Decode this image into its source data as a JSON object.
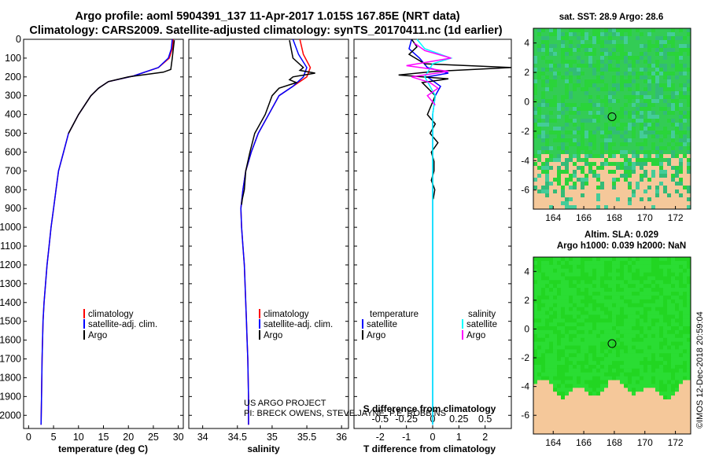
{
  "header": {
    "line1": "Argo profile: aoml 5904391_137 11-Apr-2017 1.015S 167.85E (NRT data)",
    "line2": "Climatology: CARS2009. Satellite-adjusted climatology: synTS_20170411.nc (1d earlier)"
  },
  "watermark": "US ARGO PROJECT\nPI: BRECK OWENS, STEVE JAYNE, P.E. ROBBINS",
  "timestamp": "©IMOS 12-Dec-2018 20:59:04",
  "colors": {
    "climatology": "#ff0000",
    "satellite": "#0000ff",
    "argo": "#000000",
    "sal_satellite": "#00ffff",
    "sal_argo": "#ff00ff",
    "land": "#f5c89a",
    "ocean": "#22dd22"
  },
  "chart_data": [
    {
      "type": "line",
      "id": "temperature",
      "xlabel": "temperature (deg C)",
      "xlim": [
        -1,
        31
      ],
      "ylim": [
        2070,
        0
      ],
      "xticks": [
        0,
        5,
        10,
        15,
        20,
        25,
        30
      ],
      "yticks": [
        0,
        100,
        200,
        300,
        400,
        500,
        600,
        700,
        800,
        900,
        1000,
        1100,
        1200,
        1300,
        1400,
        1500,
        1600,
        1700,
        1800,
        1900,
        2000
      ],
      "legend": [
        "climatology",
        "satellite-adj. clim.",
        "Argo"
      ],
      "series": [
        {
          "name": "climatology",
          "x": [
            29.0,
            28.8,
            28.2,
            26,
            21,
            16,
            14,
            12.5,
            10,
            8,
            7,
            6,
            5.5,
            5,
            4.5,
            4.1,
            3.7,
            3.4,
            3.1,
            2.9,
            2.7,
            2.6,
            2.5
          ],
          "y": [
            0,
            50,
            100,
            150,
            195,
            225,
            260,
            300,
            400,
            500,
            600,
            700,
            800,
            900,
            1000,
            1100,
            1200,
            1300,
            1400,
            1500,
            1700,
            1900,
            2050
          ]
        },
        {
          "name": "satellite-adj. clim.",
          "x": [
            28.8,
            28.6,
            28.0,
            26,
            21,
            16,
            14,
            12.5,
            10,
            8,
            7,
            6,
            5.5,
            5,
            4.5,
            4.1,
            3.7,
            3.4,
            3.1,
            2.9,
            2.7,
            2.6,
            2.5
          ],
          "y": [
            0,
            50,
            100,
            150,
            195,
            225,
            260,
            300,
            400,
            500,
            600,
            700,
            800,
            900,
            1000,
            1100,
            1200,
            1300,
            1400,
            1500,
            1700,
            1900,
            2050
          ]
        },
        {
          "name": "Argo",
          "x": [
            29.2,
            29.0,
            28.8,
            28.5,
            27,
            20,
            16,
            14,
            12.5,
            10,
            8
          ],
          "y": [
            5,
            50,
            100,
            160,
            175,
            200,
            225,
            260,
            300,
            400,
            500
          ]
        }
      ]
    },
    {
      "type": "line",
      "id": "salinity",
      "xlabel": "salinity",
      "xlim": [
        33.8,
        36.1
      ],
      "ylim": [
        2070,
        0
      ],
      "xticks": [
        34,
        34.5,
        35,
        35.5,
        36
      ],
      "legend": [
        "climatology",
        "satellite-adj. clim.",
        "Argo"
      ],
      "series": [
        {
          "name": "climatology",
          "x": [
            35.4,
            35.45,
            35.55,
            35.5,
            35.3,
            35.1,
            34.95,
            34.8,
            34.7,
            34.62,
            34.58,
            34.55,
            34.56,
            34.58,
            34.6,
            34.61,
            34.62,
            34.63,
            34.64,
            34.65,
            34.66,
            34.66
          ],
          "y": [
            0,
            80,
            150,
            200,
            250,
            300,
            400,
            500,
            600,
            700,
            800,
            900,
            1000,
            1100,
            1200,
            1300,
            1400,
            1500,
            1600,
            1700,
            1900,
            2050
          ]
        },
        {
          "name": "satellite-adj. clim.",
          "x": [
            35.3,
            35.38,
            35.5,
            35.45,
            35.3,
            35.1,
            34.95,
            34.8,
            34.7,
            34.62,
            34.58,
            34.55,
            34.56,
            34.58,
            34.6,
            34.61,
            34.62,
            34.63,
            34.64,
            34.65,
            34.66,
            34.66
          ],
          "y": [
            0,
            80,
            150,
            200,
            250,
            300,
            400,
            500,
            600,
            700,
            800,
            900,
            1000,
            1100,
            1200,
            1300,
            1400,
            1500,
            1600,
            1700,
            1900,
            2050
          ]
        },
        {
          "name": "Argo",
          "x": [
            35.25,
            35.3,
            35.45,
            35.4,
            35.62,
            35.3,
            35.25,
            35.35,
            35.1,
            35.0,
            34.9,
            34.75,
            34.68,
            34.62,
            34.6,
            34.57,
            34.56
          ],
          "y": [
            5,
            100,
            150,
            165,
            180,
            200,
            215,
            230,
            260,
            300,
            400,
            500,
            600,
            700,
            800,
            850,
            880
          ]
        }
      ]
    },
    {
      "type": "line",
      "id": "difference",
      "xlabel": "T difference from climatology",
      "xlabel2": "S difference from climatology",
      "xlim": [
        -3,
        3
      ],
      "ylim": [
        2070,
        0
      ],
      "xticks": [
        -2,
        -1,
        0,
        1,
        2
      ],
      "xticks_s": [
        -0.5,
        -0.25,
        0,
        0.25,
        0.5
      ],
      "legend_t_title": "temperature",
      "legend_s_title": "salinity",
      "legend": [
        "satellite",
        "Argo",
        "satellite",
        "Argo"
      ],
      "series": [
        {
          "name": "T satellite",
          "x": [
            -0.8,
            -0.9,
            -0.5,
            -0.2,
            0.6,
            -0.2,
            0.3,
            0.1,
            0,
            0,
            0,
            0,
            0
          ],
          "y": [
            0,
            50,
            100,
            150,
            180,
            200,
            250,
            300,
            400,
            600,
            1000,
            1500,
            2050
          ]
        },
        {
          "name": "T Argo",
          "x": [
            -0.8,
            -0.6,
            -0.9,
            -0.3,
            3,
            0.1,
            -1.3,
            0.6,
            -0.4,
            0.1,
            -0.2,
            0.1,
            -0.1,
            0.2,
            -0.05,
            0.05,
            0.05,
            -0.05,
            0.08,
            0.02
          ],
          "y": [
            0,
            40,
            80,
            130,
            150,
            170,
            190,
            210,
            230,
            300,
            400,
            450,
            500,
            550,
            600,
            650,
            700,
            750,
            800,
            850
          ]
        },
        {
          "name": "S satellite",
          "x": [
            -0.6,
            -0.3,
            0.7,
            0,
            -0.3,
            0.1,
            0,
            0,
            0,
            0,
            0
          ],
          "y": [
            0,
            50,
            100,
            130,
            200,
            300,
            400,
            600,
            1000,
            1500,
            2050
          ]
        },
        {
          "name": "S Argo",
          "x": [
            -0.7,
            -0.3,
            0.7,
            -1.0,
            0.6,
            -0.8,
            -0.1,
            0.2,
            -0.2,
            0.1
          ],
          "y": [
            20,
            60,
            100,
            140,
            170,
            200,
            230,
            260,
            300,
            350
          ]
        }
      ]
    },
    {
      "type": "heatmap",
      "id": "sst_map",
      "title": "sat. SST: 28.9 Argo: 28.6",
      "xlim": [
        162.7,
        173.0
      ],
      "ylim": [
        -7.3,
        5.0
      ],
      "xticks": [
        164,
        166,
        168,
        170,
        172
      ],
      "yticks": [
        4,
        2,
        0,
        -2,
        -4,
        -6
      ],
      "argo_position": {
        "lon": 167.85,
        "lat": -1.015
      }
    },
    {
      "type": "heatmap",
      "id": "sla_map",
      "title": "Altim. SLA: 0.029",
      "subtitle": "Argo h1000: 0.039 h2000: NaN",
      "xlim": [
        162.7,
        173.0
      ],
      "ylim": [
        -7.3,
        5.0
      ],
      "xticks": [
        164,
        166,
        168,
        170,
        172
      ],
      "yticks": [
        4,
        2,
        0,
        -2,
        -4,
        -6
      ],
      "argo_position": {
        "lon": 167.85,
        "lat": -1.015
      }
    }
  ]
}
